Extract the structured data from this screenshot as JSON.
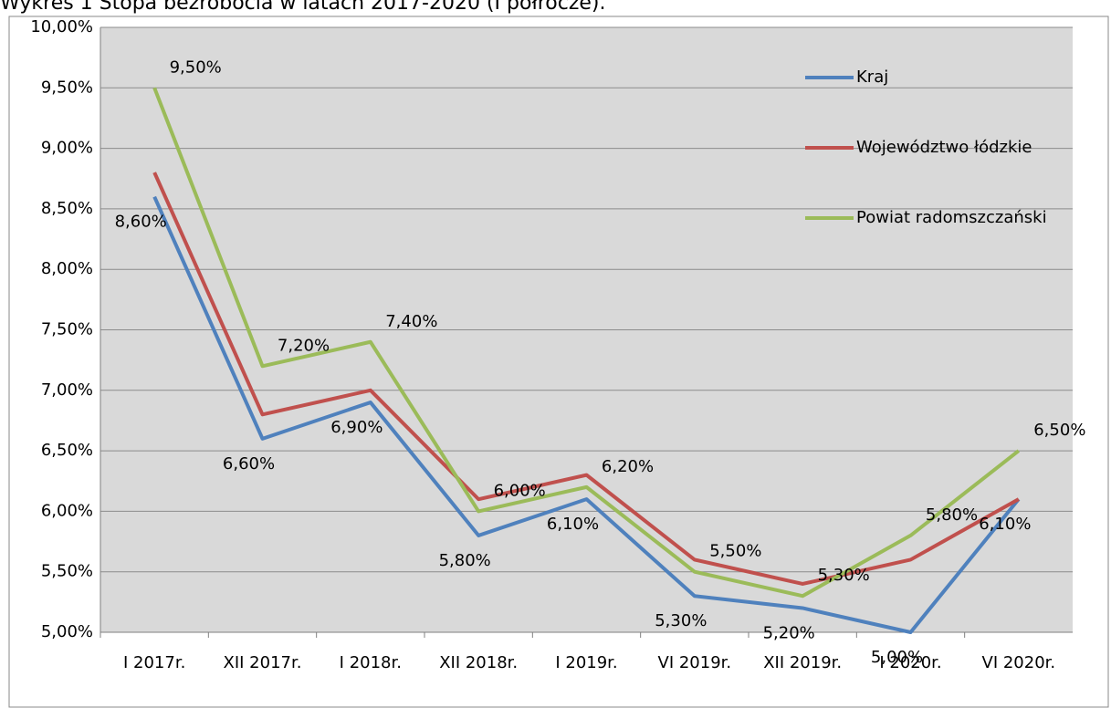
{
  "chart_data": {
    "type": "line",
    "title": "Wykres 1 Stopa bezrobocia w latach 2017-2020 (I półrocze).",
    "categories": [
      "I 2017r.",
      "XII 2017r.",
      "I 2018r.",
      "XII 2018r.",
      "I 2019r.",
      "VI 2019r.",
      "XII 2019r.",
      "I 2020r.",
      "VI 2020r."
    ],
    "series": [
      {
        "name": "Kraj",
        "color": "#4f81bd",
        "values": [
          8.6,
          6.6,
          6.9,
          5.8,
          6.1,
          5.3,
          5.2,
          5.0,
          6.1
        ],
        "value_labels": [
          "8,60%",
          "6,60%",
          "6,90%",
          "5,80%",
          "6,10%",
          "5,30%",
          "5,20%",
          "5,00%",
          "6,10%"
        ]
      },
      {
        "name": "Województwo łódzkie",
        "color": "#c0504d",
        "values": [
          8.8,
          6.8,
          7.0,
          6.1,
          6.3,
          5.6,
          5.4,
          5.6,
          6.1
        ]
      },
      {
        "name": "Powiat radomszczański",
        "color": "#9bbb59",
        "values": [
          9.5,
          7.2,
          7.4,
          6.0,
          6.2,
          5.5,
          5.3,
          5.8,
          6.5
        ],
        "value_labels": [
          "9,50%",
          "7,20%",
          "7,40%",
          "6,00%",
          "6,20%",
          "5,50%",
          "5,30%",
          "5,80%",
          "6,50%"
        ]
      }
    ],
    "ylim": [
      5,
      10
    ],
    "yticks": [
      {
        "value": 5,
        "label": "5,00%"
      },
      {
        "value": 5.5,
        "label": "5,50%"
      },
      {
        "value": 6,
        "label": "6,00%"
      },
      {
        "value": 6.5,
        "label": "6,50%"
      },
      {
        "value": 7,
        "label": "7,00%"
      },
      {
        "value": 7.5,
        "label": "7,50%"
      },
      {
        "value": 8,
        "label": "8,00%"
      },
      {
        "value": 8.5,
        "label": "8,50%"
      },
      {
        "value": 9,
        "label": "9,00%"
      },
      {
        "value": 9.5,
        "label": "9,50%"
      },
      {
        "value": 10,
        "label": "10,00%"
      }
    ],
    "grid": true,
    "legend": "top-right"
  }
}
